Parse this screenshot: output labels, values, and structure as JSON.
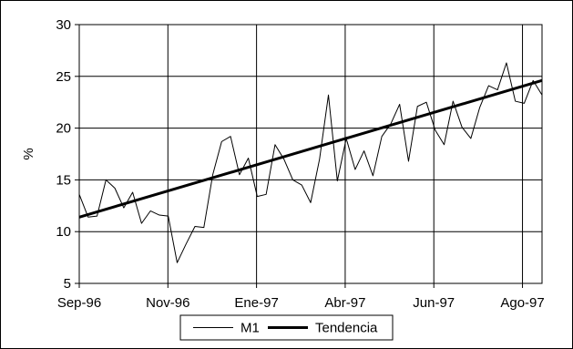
{
  "chart_data": {
    "type": "line",
    "ylabel": "%",
    "ylim": [
      5,
      30
    ],
    "yticks": [
      5,
      10,
      15,
      20,
      25,
      30
    ],
    "xlim_months": [
      "1996-09",
      "1997-09"
    ],
    "xticks": [
      "Sep-96",
      "Nov-96",
      "Ene-97",
      "Abr-97",
      "Jun-97",
      "Ago-97"
    ],
    "grid": true,
    "legend_position": "bottom",
    "series": [
      {
        "name": "M1",
        "style": "thin",
        "color": "#000000",
        "values": [
          13.6,
          11.4,
          11.5,
          15.0,
          14.2,
          12.3,
          13.8,
          10.8,
          12.0,
          11.6,
          11.5,
          7.0,
          8.8,
          10.5,
          10.4,
          15.5,
          18.7,
          19.2,
          15.5,
          17.1,
          13.4,
          13.6,
          18.4,
          17.0,
          15.0,
          14.5,
          12.8,
          17.0,
          23.2,
          14.9,
          19.0,
          16.0,
          17.8,
          15.4,
          19.2,
          20.4,
          22.3,
          16.8,
          22.1,
          22.5,
          19.8,
          18.4,
          22.6,
          20.1,
          19.0,
          22.0,
          24.1,
          23.7,
          26.3,
          22.6,
          22.4,
          24.6,
          23.2
        ]
      },
      {
        "name": "Tendencia",
        "style": "thick",
        "color": "#000000",
        "values": [
          11.4,
          24.6
        ]
      }
    ]
  }
}
